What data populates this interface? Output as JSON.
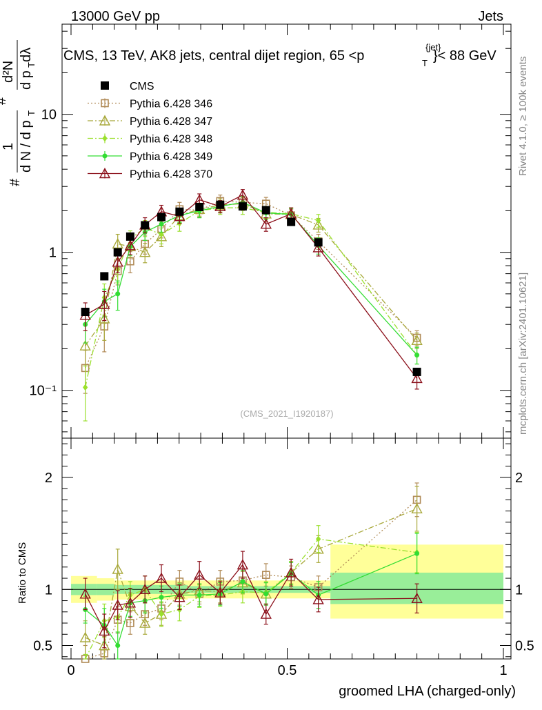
{
  "header": {
    "left": "13000 GeV pp",
    "right": "Jets",
    "title_main": "CMS, 13 TeV, AK8 jets, central dijet region, 65 <p",
    "title_sup": "{jet}",
    "title_sub": "T",
    "title_end": "}< 88 GeV"
  },
  "side": {
    "rivet": "Rivet 4.1.0, ≥ 100k events",
    "mcplots": "mcplots.cern.ch [arXiv:2401.10621]"
  },
  "yaxis_top": {
    "frac_num": "1",
    "frac_den": "d N / d p",
    "frac_den_sub": "T",
    "hash1": "#",
    "hash2": "#",
    "num2": "d²N",
    "den2": "d p",
    "den2_sub": "T",
    "den2_end": " dλ"
  },
  "analysis_tag": "(CMS_2021_I1920187)",
  "ratio_ylabel": "Ratio to CMS",
  "xlabel": "groomed LHA (charged-only)",
  "colors": {
    "cms": "#000000",
    "p346": "#b08a56",
    "p347": "#a8a83a",
    "p348": "#9be02e",
    "p349": "#33dd33",
    "p370": "#8b0f1a",
    "band_outer": "#ffff99",
    "band_inner": "#99ee99"
  },
  "chart_data": {
    "type": "scatter",
    "title": "CMS, 13 TeV, AK8 jets, central dijet region, 65 < pT jet < 88 GeV",
    "xlabel": "groomed LHA (charged-only)",
    "ylabel": "1/(dN/dpT) d²N/(dpT dλ)",
    "xlim": [
      0,
      1
    ],
    "ylim": [
      0.045,
      45
    ],
    "yscale": "log",
    "xticks": [
      "0",
      "0.5",
      "1"
    ],
    "yticks": [
      "10⁻¹",
      "1",
      "10"
    ],
    "x": [
      0.033,
      0.077,
      0.108,
      0.137,
      0.171,
      0.209,
      0.251,
      0.297,
      0.345,
      0.397,
      0.451,
      0.509,
      0.572,
      0.8
    ],
    "series": [
      {
        "name": "CMS",
        "marker": "square-filled",
        "values": [
          0.37,
          0.67,
          1.0,
          1.3,
          1.57,
          1.8,
          1.97,
          2.13,
          2.21,
          2.15,
          2.02,
          1.66,
          1.18,
          0.136
        ],
        "err": [
          0.02,
          0.03,
          0.04,
          0.05,
          0.06,
          0.07,
          0.07,
          0.08,
          0.08,
          0.08,
          0.08,
          0.06,
          0.05,
          0.008
        ]
      },
      {
        "name": "Pythia 6.428 346",
        "style": "dotted",
        "marker": "square-open",
        "values": [
          0.145,
          0.29,
          0.73,
          0.86,
          1.15,
          1.47,
          2.05,
          2.02,
          2.35,
          2.3,
          2.25,
          1.85,
          1.2,
          0.24
        ],
        "err": [
          0.05,
          0.1,
          0.15,
          0.15,
          0.18,
          0.2,
          0.25,
          0.22,
          0.25,
          0.25,
          0.25,
          0.2,
          0.15,
          0.03
        ]
      },
      {
        "name": "Pythia 6.428 347",
        "style": "dashdot",
        "marker": "triangle-open",
        "values": [
          0.21,
          0.33,
          1.15,
          1.1,
          1.0,
          1.3,
          1.85,
          2.05,
          2.2,
          2.25,
          1.9,
          1.88,
          1.58,
          0.23
        ],
        "err": [
          0.06,
          0.1,
          0.2,
          0.18,
          0.16,
          0.2,
          0.22,
          0.22,
          0.24,
          0.24,
          0.22,
          0.2,
          0.18,
          0.03
        ]
      },
      {
        "name": "Pythia 6.428 348",
        "style": "dashdot",
        "marker": "diamond",
        "values": [
          0.105,
          0.47,
          0.75,
          1.25,
          1.5,
          1.35,
          1.62,
          2.0,
          2.1,
          2.1,
          1.95,
          1.9,
          1.7,
          0.18
        ],
        "err": [
          0.045,
          0.12,
          0.15,
          0.18,
          0.2,
          0.2,
          0.2,
          0.22,
          0.22,
          0.22,
          0.2,
          0.2,
          0.18,
          0.025
        ]
      },
      {
        "name": "Pythia 6.428 349",
        "style": "solid",
        "marker": "circle",
        "values": [
          0.3,
          0.44,
          0.5,
          1.1,
          1.4,
          1.6,
          1.85,
          2.0,
          2.15,
          2.3,
          1.93,
          1.88,
          1.12,
          0.18
        ],
        "err": [
          0.08,
          0.1,
          0.12,
          0.15,
          0.18,
          0.2,
          0.2,
          0.22,
          0.22,
          0.24,
          0.2,
          0.2,
          0.15,
          0.025
        ]
      },
      {
        "name": "Pythia 6.428 370",
        "style": "solid",
        "marker": "triangle-open",
        "values": [
          0.35,
          0.42,
          0.85,
          1.12,
          1.58,
          1.97,
          1.82,
          2.4,
          2.15,
          2.6,
          1.6,
          1.9,
          1.08,
          0.122
        ],
        "err": [
          0.08,
          0.1,
          0.14,
          0.16,
          0.2,
          0.22,
          0.2,
          0.25,
          0.22,
          0.25,
          0.18,
          0.2,
          0.14,
          0.02
        ]
      }
    ],
    "ratio": {
      "ylabel": "Ratio to CMS",
      "ylim": [
        0.38,
        2.35
      ],
      "yticks": [
        "0.5",
        "1",
        "2"
      ],
      "bands": [
        {
          "x0": 0.0,
          "x1": 0.06,
          "inner": [
            0.95,
            1.05
          ],
          "outer": [
            0.88,
            1.12
          ]
        },
        {
          "x0": 0.06,
          "x1": 0.1,
          "inner": [
            0.95,
            1.05
          ],
          "outer": [
            0.9,
            1.1
          ]
        },
        {
          "x0": 0.1,
          "x1": 0.27,
          "inner": [
            0.96,
            1.04
          ],
          "outer": [
            0.91,
            1.08
          ]
        },
        {
          "x0": 0.27,
          "x1": 0.6,
          "inner": [
            0.97,
            1.03
          ],
          "outer": [
            0.92,
            1.08
          ]
        },
        {
          "x0": 0.6,
          "x1": 1.0,
          "inner": [
            0.87,
            1.15
          ],
          "outer": [
            0.74,
            1.4
          ]
        }
      ],
      "series": [
        {
          "name": "Pythia 6.428 346",
          "values": [
            0.38,
            0.43,
            0.73,
            0.7,
            0.78,
            0.83,
            1.07,
            0.96,
            1.07,
            1.08,
            1.13,
            1.11,
            1.02,
            1.8
          ],
          "err": [
            0.12,
            0.15,
            0.12,
            0.1,
            0.1,
            0.1,
            0.1,
            0.09,
            0.1,
            0.1,
            0.1,
            0.1,
            0.1,
            0.15
          ]
        },
        {
          "name": "Pythia 6.428 347",
          "values": [
            0.57,
            0.5,
            1.18,
            0.85,
            0.7,
            0.78,
            0.96,
            0.99,
            0.98,
            1.06,
            0.96,
            1.15,
            1.36,
            1.72
          ],
          "err": [
            0.15,
            0.15,
            0.18,
            0.12,
            0.1,
            0.1,
            0.1,
            0.1,
            0.1,
            0.1,
            0.1,
            0.1,
            0.12,
            0.2
          ]
        },
        {
          "name": "Pythia 6.428 348",
          "values": [
            0.3,
            0.72,
            0.75,
            0.95,
            1.0,
            0.78,
            0.82,
            0.94,
            0.95,
            0.98,
            0.97,
            1.15,
            1.45,
            1.33
          ],
          "err": [
            0.12,
            0.15,
            0.13,
            0.12,
            0.12,
            0.11,
            0.1,
            0.1,
            0.1,
            0.1,
            0.1,
            0.1,
            0.12,
            0.18
          ]
        },
        {
          "name": "Pythia 6.428 349",
          "values": [
            0.82,
            0.68,
            0.5,
            0.88,
            0.9,
            0.93,
            0.95,
            0.95,
            0.96,
            1.07,
            0.96,
            1.14,
            0.95,
            1.32
          ],
          "err": [
            0.12,
            0.15,
            0.12,
            0.12,
            0.11,
            0.1,
            0.1,
            0.1,
            0.1,
            0.1,
            0.1,
            0.1,
            0.12,
            0.18
          ]
        },
        {
          "name": "Pythia 6.428 370",
          "values": [
            0.96,
            0.63,
            0.86,
            0.88,
            1.0,
            1.1,
            0.93,
            1.13,
            0.97,
            1.22,
            0.78,
            1.15,
            0.91,
            0.92
          ],
          "err": [
            0.14,
            0.15,
            0.13,
            0.13,
            0.12,
            0.12,
            0.11,
            0.12,
            0.1,
            0.12,
            0.09,
            0.12,
            0.11,
            0.13
          ]
        }
      ]
    }
  }
}
